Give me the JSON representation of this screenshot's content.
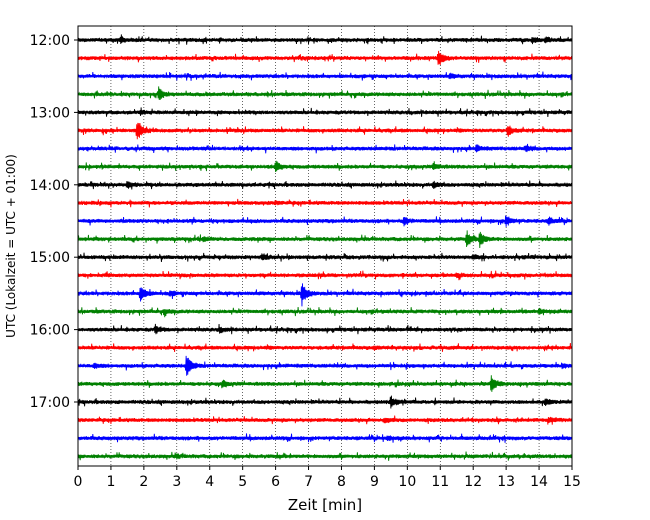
{
  "chart_data": {
    "type": "line",
    "title": "",
    "xlabel": "Zeit  [min]",
    "ylabel": "UTC (Lokalzeit = UTC + 01:00)",
    "xlim": [
      0,
      15
    ],
    "x_ticks": [
      "0",
      "1",
      "2",
      "3",
      "4",
      "5",
      "6",
      "7",
      "8",
      "9",
      "10",
      "11",
      "12",
      "13",
      "14",
      "15"
    ],
    "y_tick_labels": [
      "12:00",
      "13:00",
      "14:00",
      "15:00",
      "16:00",
      "17:00"
    ],
    "grid": "vertical dotted lines at each minute",
    "trace_interval_minutes": 15,
    "color_cycle": [
      "#000000",
      "#ff0000",
      "#0000ff",
      "#008000"
    ],
    "series": [
      {
        "start": "12:00",
        "events": [
          {
            "t": 1.3,
            "a": 0.2
          },
          {
            "t": 13.8,
            "a": 0.25
          },
          {
            "t": 14.2,
            "a": 0.2
          }
        ]
      },
      {
        "start": "12:15",
        "events": [
          {
            "t": 10.95,
            "a": 0.7
          }
        ]
      },
      {
        "start": "12:30",
        "events": [
          {
            "t": 11.3,
            "a": 0.15
          }
        ]
      },
      {
        "start": "12:45",
        "events": [
          {
            "t": 2.45,
            "a": 0.55
          }
        ]
      },
      {
        "start": "13:00",
        "events": [
          {
            "t": 1.9,
            "a": 0.2
          }
        ]
      },
      {
        "start": "13:15",
        "events": [
          {
            "t": 1.8,
            "a": 1.0
          },
          {
            "t": 13.05,
            "a": 0.45
          }
        ]
      },
      {
        "start": "13:30",
        "events": [
          {
            "t": 12.1,
            "a": 0.25
          },
          {
            "t": 13.6,
            "a": 0.2
          }
        ]
      },
      {
        "start": "13:45",
        "events": [
          {
            "t": 6.0,
            "a": 0.45
          },
          {
            "t": 10.8,
            "a": 0.3
          }
        ]
      },
      {
        "start": "14:00",
        "events": [
          {
            "t": 1.5,
            "a": 0.25
          },
          {
            "t": 10.8,
            "a": 0.25
          }
        ]
      },
      {
        "start": "14:15",
        "events": [
          {
            "t": 6.0,
            "a": 0.1
          }
        ]
      },
      {
        "start": "14:30",
        "events": [
          {
            "t": 9.9,
            "a": 0.35
          },
          {
            "t": 13.0,
            "a": 0.45
          },
          {
            "t": 14.3,
            "a": 0.3
          }
        ]
      },
      {
        "start": "14:45",
        "events": [
          {
            "t": 11.8,
            "a": 0.55
          },
          {
            "t": 12.2,
            "a": 0.65
          },
          {
            "t": 3.8,
            "a": 0.15
          }
        ]
      },
      {
        "start": "15:00",
        "events": [
          {
            "t": 5.6,
            "a": 0.25
          },
          {
            "t": 12.0,
            "a": 0.2
          }
        ]
      },
      {
        "start": "15:15",
        "events": [
          {
            "t": 11.5,
            "a": 0.15
          }
        ]
      },
      {
        "start": "15:30",
        "events": [
          {
            "t": 1.9,
            "a": 0.75
          },
          {
            "t": 6.8,
            "a": 0.95
          },
          {
            "t": 2.8,
            "a": 0.2
          }
        ]
      },
      {
        "start": "15:45",
        "events": [
          {
            "t": 2.6,
            "a": 0.2
          },
          {
            "t": 14.0,
            "a": 0.2
          }
        ]
      },
      {
        "start": "16:00",
        "events": [
          {
            "t": 2.35,
            "a": 0.35
          },
          {
            "t": 4.3,
            "a": 0.2
          }
        ]
      },
      {
        "start": "16:15",
        "events": [
          {
            "t": 9.0,
            "a": 0.1
          }
        ]
      },
      {
        "start": "16:30",
        "events": [
          {
            "t": 3.3,
            "a": 1.0
          },
          {
            "t": 0.5,
            "a": 0.2
          },
          {
            "t": 14.7,
            "a": 0.2
          }
        ]
      },
      {
        "start": "16:45",
        "events": [
          {
            "t": 12.55,
            "a": 0.65
          },
          {
            "t": 4.4,
            "a": 0.25
          }
        ]
      },
      {
        "start": "17:00",
        "events": [
          {
            "t": 9.5,
            "a": 0.45
          },
          {
            "t": 14.2,
            "a": 0.25
          }
        ]
      },
      {
        "start": "17:15",
        "events": [
          {
            "t": 9.3,
            "a": 0.2
          },
          {
            "t": 14.3,
            "a": 0.2
          }
        ]
      },
      {
        "start": "17:30",
        "events": [
          {
            "t": 9.4,
            "a": 0.15
          }
        ]
      },
      {
        "start": "17:45",
        "events": [
          {
            "t": 3.0,
            "a": 0.15
          }
        ]
      }
    ]
  }
}
